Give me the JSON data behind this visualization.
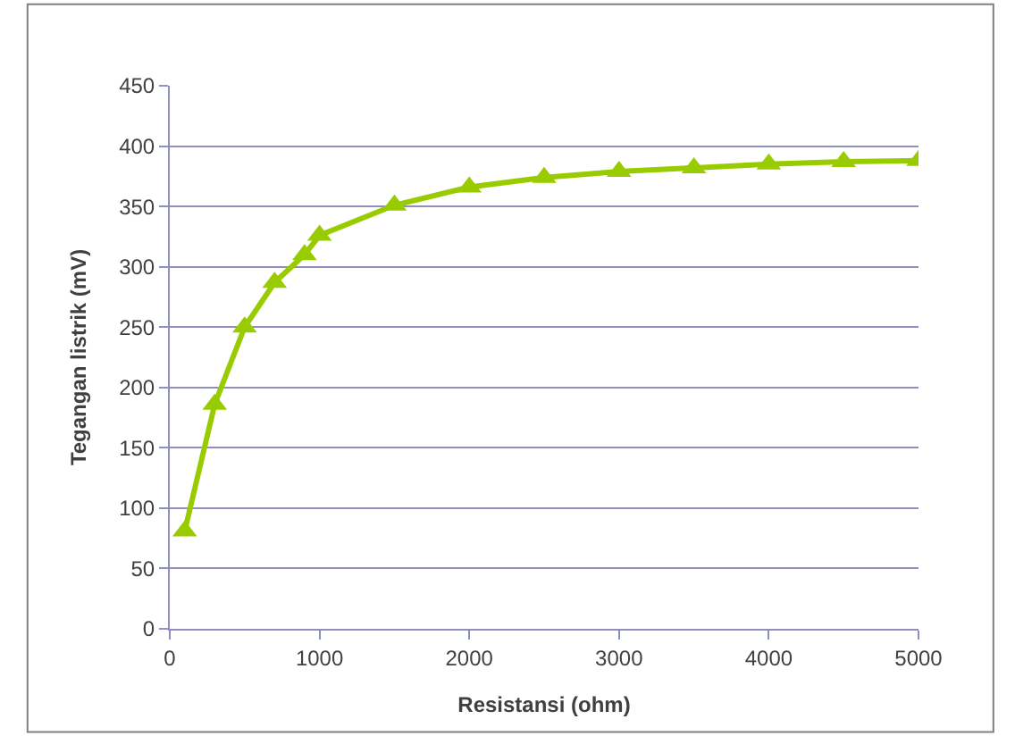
{
  "chart_data": {
    "type": "line",
    "xlabel": "Resistansi (ohm)",
    "ylabel": "Tegangan listrik (mV)",
    "x": [
      100,
      300,
      500,
      700,
      900,
      1000,
      1500,
      2000,
      2500,
      3000,
      3500,
      4000,
      4500,
      5000
    ],
    "series": [
      {
        "color": "#99cc00",
        "values": [
          81,
          186,
          250,
          287,
          310,
          326,
          351,
          366,
          374,
          379,
          382,
          385,
          387,
          388
        ]
      }
    ],
    "xlim": [
      0,
      5000
    ],
    "xticks": [
      0,
      1000,
      2000,
      3000,
      4000,
      5000
    ],
    "ylim": [
      0,
      450
    ],
    "yticks": [
      0,
      50,
      100,
      150,
      200,
      250,
      300,
      350,
      400,
      450
    ],
    "grid": "y",
    "marker": "triangle",
    "line_style": "solid"
  }
}
